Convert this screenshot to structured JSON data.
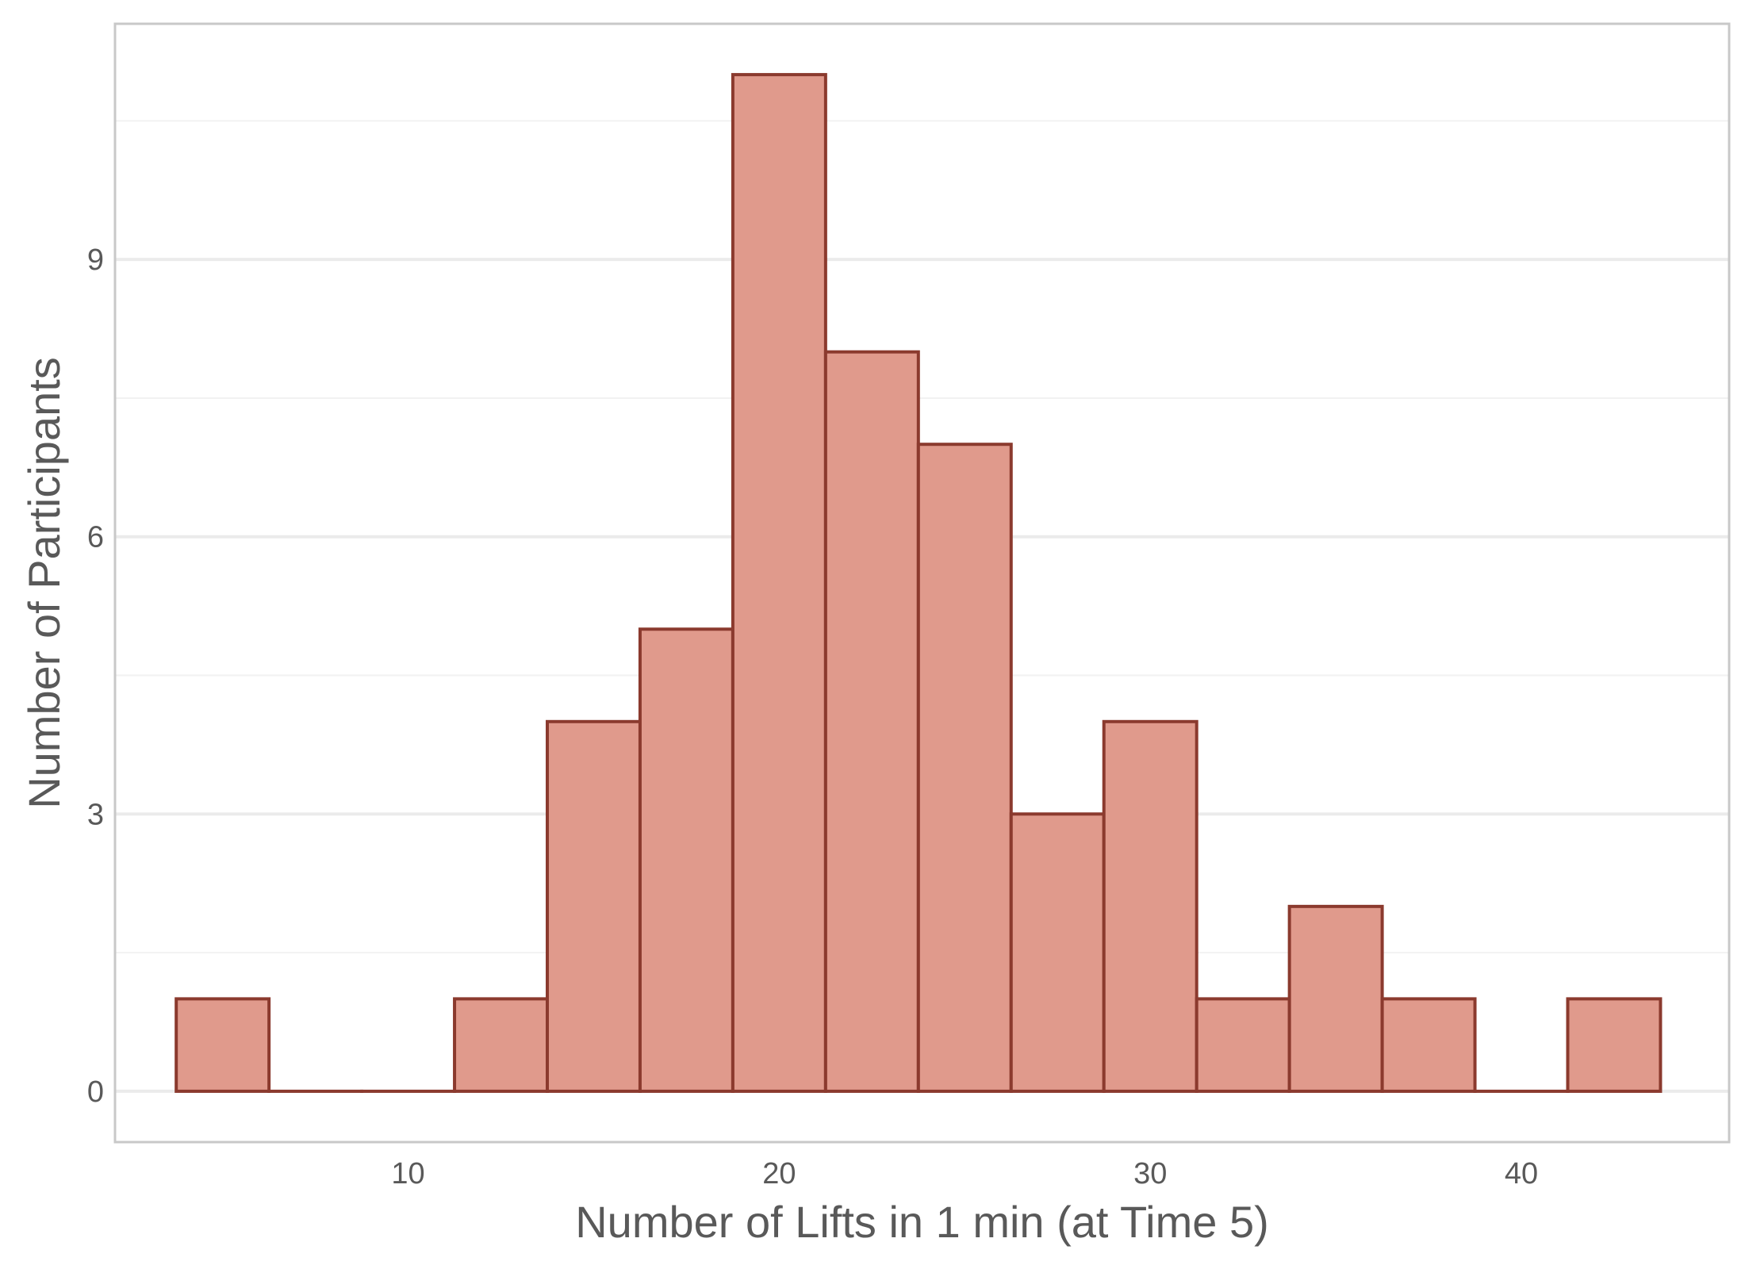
{
  "chart_data": {
    "type": "histogram",
    "title": "",
    "xlabel": "Number of Lifts in 1 min (at Time 5)",
    "ylabel": "Number of Participants",
    "xlim": [
      2.1,
      45.6
    ],
    "ylim": [
      -0.55,
      11.55
    ],
    "xticks": [
      10,
      20,
      30,
      40
    ],
    "yticks": [
      0,
      3,
      6,
      9
    ],
    "grid": true,
    "legend": "none",
    "bins": [
      {
        "x0": 3.75,
        "x1": 6.25,
        "count": 1
      },
      {
        "x0": 6.25,
        "x1": 8.75,
        "count": 0
      },
      {
        "x0": 8.75,
        "x1": 11.25,
        "count": 0
      },
      {
        "x0": 11.25,
        "x1": 13.75,
        "count": 1
      },
      {
        "x0": 13.75,
        "x1": 16.25,
        "count": 4
      },
      {
        "x0": 16.25,
        "x1": 18.75,
        "count": 5
      },
      {
        "x0": 18.75,
        "x1": 21.25,
        "count": 11
      },
      {
        "x0": 21.25,
        "x1": 23.75,
        "count": 8
      },
      {
        "x0": 23.75,
        "x1": 26.25,
        "count": 7
      },
      {
        "x0": 26.25,
        "x1": 28.75,
        "count": 3
      },
      {
        "x0": 28.75,
        "x1": 31.25,
        "count": 4
      },
      {
        "x0": 31.25,
        "x1": 33.75,
        "count": 1
      },
      {
        "x0": 33.75,
        "x1": 36.25,
        "count": 2
      },
      {
        "x0": 36.25,
        "x1": 38.75,
        "count": 1
      },
      {
        "x0": 38.75,
        "x1": 41.25,
        "count": 0
      },
      {
        "x0": 41.25,
        "x1": 43.75,
        "count": 1
      }
    ],
    "colors": {
      "bar_fill": "#e09a8c",
      "bar_stroke": "#8b3a2e",
      "grid_major": "#ebebeb",
      "grid_minor": "#f2f2f2",
      "panel_border": "#c8c8c8",
      "text": "#595959"
    }
  }
}
